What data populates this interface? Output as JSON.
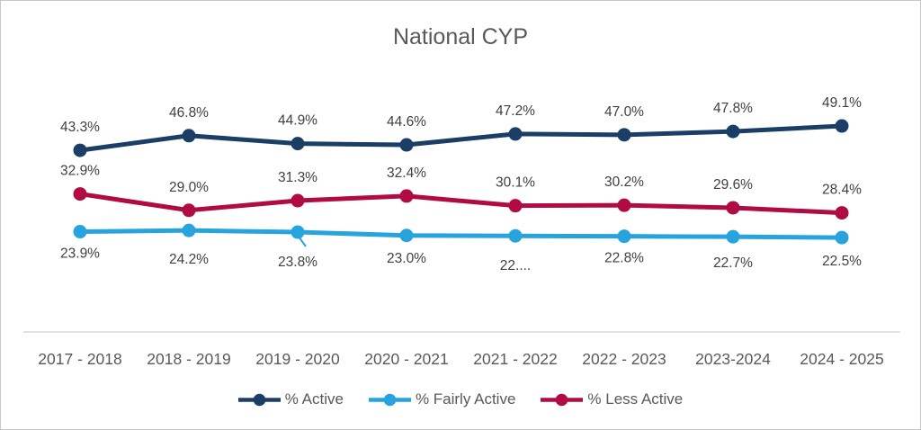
{
  "chart_data": {
    "type": "line",
    "title": "National CYP",
    "categories": [
      "2017 - 2018",
      "2018 - 2019",
      "2019 - 2020",
      "2020 - 2021",
      "2021 - 2022",
      "2022 - 2023",
      "2023-2024",
      "2024 - 2025"
    ],
    "series": [
      {
        "name": "% Active",
        "color": "#1B3E66",
        "values": [
          43.3,
          46.8,
          44.9,
          44.6,
          47.2,
          47.0,
          47.8,
          49.1
        ],
        "labels": [
          "43.3%",
          "46.8%",
          "44.9%",
          "44.6%",
          "47.2%",
          "47.0%",
          "47.8%",
          "49.1%"
        ],
        "label_position": "above"
      },
      {
        "name": "% Fairly Active",
        "color": "#27A4DE",
        "values": [
          23.9,
          24.2,
          23.8,
          23.0,
          22.9,
          22.8,
          22.7,
          22.5
        ],
        "labels": [
          "23.9%",
          "24.2%",
          "23.8%",
          "23.0%",
          "22....",
          "22.8%",
          "22.7%",
          "22.5%"
        ],
        "label_position": "below",
        "label_dy": [
          29,
          37,
          38,
          30,
          38,
          29,
          34,
          31
        ],
        "leader_lines": [
          2
        ]
      },
      {
        "name": "% Less Active",
        "color": "#B00B42",
        "values": [
          32.9,
          29.0,
          31.3,
          32.4,
          30.1,
          30.2,
          29.6,
          28.4
        ],
        "labels": [
          "32.9%",
          "29.0%",
          "31.3%",
          "32.4%",
          "30.1%",
          "30.2%",
          "29.6%",
          "28.4%"
        ],
        "label_position": "above"
      }
    ],
    "ylim": [
      0,
      62
    ],
    "y_axis_visible": false,
    "grid": false,
    "legend_position": "bottom",
    "title_color": "#595959",
    "label_color": "#404040",
    "axis_label_color": "#595959",
    "axis_line_color": "#D9D9D9",
    "legend_text_color": "#595959"
  }
}
